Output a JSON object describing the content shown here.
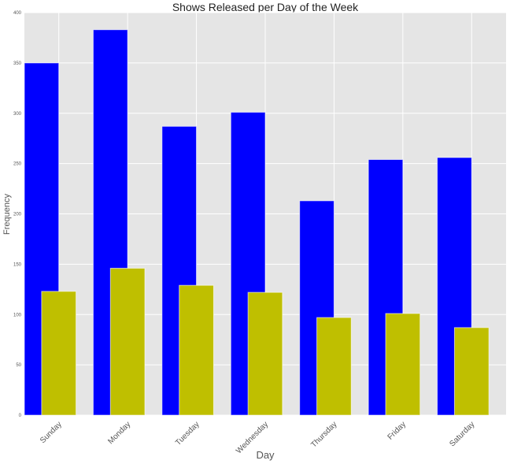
{
  "chart_data": {
    "type": "bar",
    "title": "Shows Released per Day of the Week",
    "xlabel": "Day",
    "ylabel": "Frequency",
    "categories": [
      "Sunday",
      "Monday",
      "Tuesday",
      "Wednesday",
      "Thursday",
      "Friday",
      "Saturday"
    ],
    "ylim": [
      0,
      400
    ],
    "yticks": [
      0,
      50,
      100,
      150,
      200,
      250,
      300,
      350,
      400
    ],
    "ytick_labels": [
      "0",
      "50",
      "100",
      "150",
      "200",
      "250",
      "300",
      "350",
      "400"
    ],
    "grid": true,
    "background": "#e5e5e5",
    "series": [
      {
        "color": "#0000ff",
        "values": [
          350,
          383,
          287,
          301,
          213,
          254,
          256
        ]
      },
      {
        "color": "#bfbf00",
        "values": [
          123,
          146,
          129,
          122,
          97,
          101,
          87
        ]
      }
    ]
  }
}
